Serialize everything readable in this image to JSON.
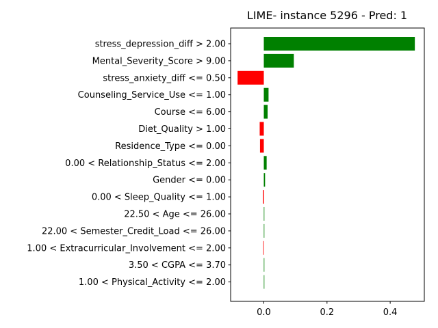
{
  "chart_data": {
    "type": "bar",
    "orientation": "horizontal",
    "title": "LIME- instance 5296 - Pred: 1",
    "xlabel": "",
    "ylabel": "",
    "xlim": [
      -0.105,
      0.508
    ],
    "x_ticks": [
      0.0,
      0.2,
      0.4
    ],
    "x_tick_labels": [
      "0.0",
      "0.2",
      "0.4"
    ],
    "grid": false,
    "legend": "none",
    "positive_color": "#008000",
    "negative_color": "#ff0000",
    "categories": [
      "stress_depression_diff > 2.00",
      "Mental_Severity_Score > 9.00",
      "stress_anxiety_diff <= 0.50",
      "Counseling_Service_Use <= 1.00",
      "Course <= 6.00",
      "Diet_Quality > 1.00",
      "Residence_Type <= 0.00",
      "0.00 < Relationship_Status <= 2.00",
      "Gender <= 0.00",
      "0.00 < Sleep_Quality <= 1.00",
      "22.50 < Age <= 26.00",
      "22.00 < Semester_Credit_Load <= 26.00",
      "1.00 < Extracurricular_Involvement <= 2.00",
      "3.50 < CGPA <= 3.70",
      "1.00 < Physical_Activity <= 2.00"
    ],
    "values": [
      0.478,
      0.095,
      -0.083,
      0.015,
      0.012,
      -0.013,
      -0.012,
      0.009,
      0.004,
      -0.003,
      0.0015,
      0.0003,
      -0.0018,
      0.0001,
      0.0001
    ]
  }
}
